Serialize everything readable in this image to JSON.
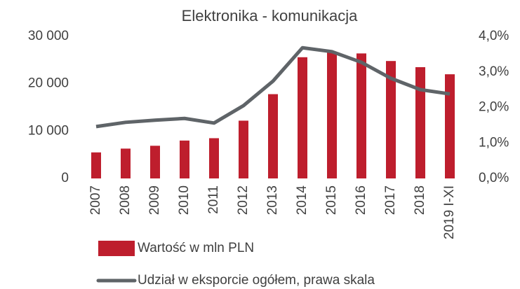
{
  "chart_data": {
    "type": "bar",
    "title": "Elektronika - komunikacja",
    "categories": [
      "2007",
      "2008",
      "2009",
      "2010",
      "2011",
      "2012",
      "2013",
      "2014",
      "2015",
      "2016",
      "2017",
      "2018",
      "2019 I-XI"
    ],
    "series": [
      {
        "name": "Wartość w mln PLN",
        "type": "bar",
        "color": "#be1e2d",
        "values": [
          5500,
          6300,
          6900,
          8000,
          8500,
          12200,
          17800,
          25600,
          26600,
          26400,
          24800,
          23500,
          22000
        ]
      },
      {
        "name": "Udział w eksporcie ogółem, prawa skala",
        "type": "line",
        "axis": "y2",
        "color": "#5f6468",
        "values": [
          1.46,
          1.58,
          1.64,
          1.69,
          1.56,
          2.05,
          2.74,
          3.68,
          3.57,
          3.27,
          2.82,
          2.5,
          2.38
        ]
      }
    ],
    "ylim": [
      0,
      30000
    ],
    "yticks": [
      0,
      {
        "value": 10000,
        "label": "10 000"
      },
      {
        "value": 20000,
        "label": "20 000"
      },
      {
        "value": 30000,
        "label": "30 000"
      }
    ],
    "y2lim": [
      0,
      4
    ],
    "y2ticks": [
      {
        "value": 0,
        "label": "0,0%"
      },
      {
        "value": 1,
        "label": "1,0%"
      },
      {
        "value": 2,
        "label": "2,0%"
      },
      {
        "value": 3,
        "label": "3,0%"
      },
      {
        "value": 4,
        "label": "4,0%"
      }
    ],
    "grid": false,
    "legend": "bottom"
  }
}
